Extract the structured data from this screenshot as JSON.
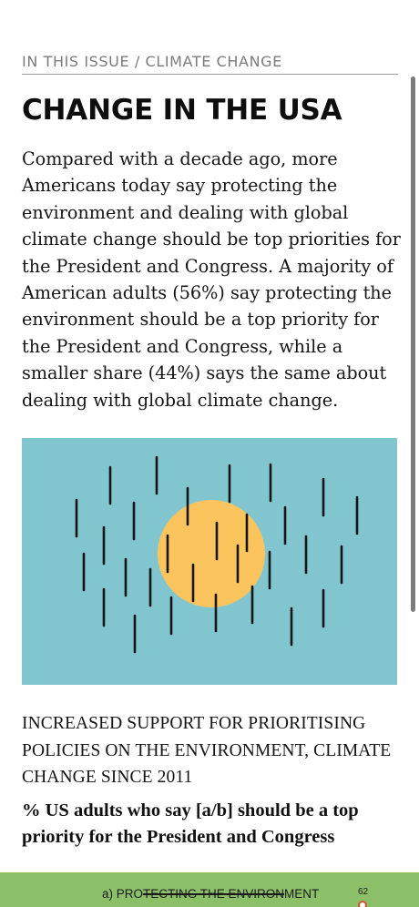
{
  "section": {
    "label": "IN THIS ISSUE / CLIMATE CHANGE"
  },
  "article": {
    "headline": "CHANGE IN THE USA",
    "paragraph": "Compared with a decade ago, more Americans today say protecting the environment and dealing with global climate change should be top priorities for the President and Congress. A majority of American adults (56%) say protecting the environment should be a top priority for the President and Congress, while a smaller share (44%) says the same about dealing with global climate change."
  },
  "illustration": {
    "icon": "sun-and-rain-icon",
    "colors": {
      "sky": "#81c6cf",
      "sun": "#fcc45c",
      "rain": "#161616"
    }
  },
  "chart": {
    "title": "INCREASED SUPPORT FOR PRIORITISING POLICIES ON THE ENVIRONMENT, CLIMATE CHANGE SINCE 2011",
    "subtitle": "% US adults who say [a/b] should be a top priority for the President and Congress"
  },
  "bottom_bar": {
    "label_prefix": "a) PRO",
    "label_struck": "TECTING THE ENVIRON",
    "label_suffix": "MENT",
    "page_number": "62",
    "color": "#8cc068"
  }
}
